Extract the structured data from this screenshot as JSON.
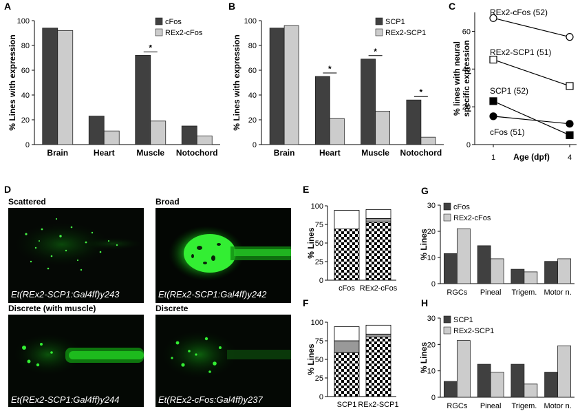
{
  "colors": {
    "dark": "#404040",
    "light": "#cccccc",
    "green": "#22dd22",
    "stroke": "#000000"
  },
  "panelA": {
    "letter": "A",
    "chart_data": {
      "type": "bar",
      "ylabel": "% Lines with expression",
      "ylim": [
        0,
        100
      ],
      "yticks": [
        0,
        20,
        40,
        60,
        80,
        100
      ],
      "categories": [
        "Brain",
        "Heart",
        "Muscle",
        "Notochord"
      ],
      "series": [
        {
          "name": "cFos",
          "values": [
            94,
            23,
            72,
            15
          ]
        },
        {
          "name": "REx2-cFos",
          "values": [
            92,
            11,
            19,
            7
          ]
        }
      ],
      "significance": [
        {
          "category_index": 2,
          "text": "*"
        }
      ],
      "legend": "top-right"
    }
  },
  "panelB": {
    "letter": "B",
    "chart_data": {
      "type": "bar",
      "ylabel": "% Lines with expression",
      "ylim": [
        0,
        100
      ],
      "yticks": [
        0,
        20,
        40,
        60,
        80,
        100
      ],
      "categories": [
        "Brain",
        "Heart",
        "Muscle",
        "Notochord"
      ],
      "series": [
        {
          "name": "SCP1",
          "values": [
            94,
            55,
            69,
            36
          ]
        },
        {
          "name": "REx2-SCP1",
          "values": [
            96,
            21,
            27,
            6
          ]
        }
      ],
      "significance": [
        {
          "category_index": 1,
          "text": "*"
        },
        {
          "category_index": 2,
          "text": "*"
        },
        {
          "category_index": 3,
          "text": "*"
        }
      ],
      "legend": "top-right"
    }
  },
  "panelC": {
    "letter": "C",
    "chart_data": {
      "type": "line",
      "ylabel": "% lines with neural specific expression",
      "ylabel_lines": [
        "% lines with neural",
        "specific expression"
      ],
      "xlabel": "Age (dpf)",
      "x": [
        1,
        4
      ],
      "ylim": [
        0,
        70
      ],
      "yticks": [
        0,
        20,
        40,
        60
      ],
      "series": [
        {
          "name": "REx2-cFos (52)",
          "values": [
            67,
            57
          ],
          "marker": "open-circle"
        },
        {
          "name": "REx2-SCP1 (51)",
          "values": [
            45,
            31
          ],
          "marker": "open-square"
        },
        {
          "name": "SCP1 (52)",
          "values": [
            23,
            5
          ],
          "marker": "filled-square"
        },
        {
          "name": "cFos (51)",
          "values": [
            15,
            11
          ],
          "marker": "filled-circle"
        }
      ]
    }
  },
  "panelD": {
    "letter": "D",
    "images": [
      {
        "title": "Scattered",
        "caption": "Et(REx2-SCP1:Gal4ff)y243"
      },
      {
        "title": "Broad",
        "caption": "Et(REx2-SCP1:Gal4ff)y242"
      },
      {
        "title": "Discrete (with muscle)",
        "caption": "Et(REx2-SCP1:Gal4ff)y244"
      },
      {
        "title": "Discrete",
        "caption": "Et(REx2-cFos:Gal4ff)y237"
      }
    ]
  },
  "panelE": {
    "letter": "E",
    "chart_data": {
      "type": "bar",
      "stacked": true,
      "ylabel": "% Lines",
      "ylim": [
        0,
        100
      ],
      "yticks": [
        0,
        25,
        50,
        75,
        100
      ],
      "categories": [
        "cFos",
        "REx2-cFos"
      ],
      "series": [
        {
          "name": "",
          "pattern": "checker",
          "values": [
            69,
            78
          ]
        },
        {
          "name": "",
          "pattern": "gray",
          "values": [
            0,
            5
          ]
        },
        {
          "name": "",
          "pattern": "white",
          "values": [
            25,
            12
          ]
        }
      ]
    }
  },
  "panelF": {
    "letter": "F",
    "chart_data": {
      "type": "bar",
      "stacked": true,
      "ylabel": "% Lines",
      "ylim": [
        0,
        100
      ],
      "yticks": [
        0,
        25,
        50,
        75,
        100
      ],
      "categories": [
        "SCP1",
        "REx2-SCP1"
      ],
      "series": [
        {
          "name": "",
          "pattern": "checker",
          "values": [
            59,
            80
          ]
        },
        {
          "name": "",
          "pattern": "gray",
          "values": [
            16,
            4
          ]
        },
        {
          "name": "",
          "pattern": "white",
          "values": [
            19,
            12
          ]
        }
      ]
    }
  },
  "panelG": {
    "letter": "G",
    "chart_data": {
      "type": "bar",
      "ylabel": "% Lines",
      "ylim": [
        0,
        30
      ],
      "yticks": [
        0,
        10,
        20,
        30
      ],
      "categories": [
        "RGCs",
        "Pineal",
        "Trigem.",
        "Motor n."
      ],
      "series": [
        {
          "name": "cFos",
          "values": [
            11.5,
            14.5,
            5.5,
            8.5
          ]
        },
        {
          "name": "REx2-cFos",
          "values": [
            21,
            9.5,
            4.5,
            9.5
          ]
        }
      ],
      "legend": "top-left"
    }
  },
  "panelH": {
    "letter": "H",
    "chart_data": {
      "type": "bar",
      "ylabel": "% Lines",
      "ylim": [
        0,
        30
      ],
      "yticks": [
        0,
        10,
        20,
        30
      ],
      "categories": [
        "RGCs",
        "Pineal",
        "Trigem.",
        "Motor n."
      ],
      "series": [
        {
          "name": "SCP1",
          "values": [
            6,
            12.5,
            12.5,
            9.5
          ]
        },
        {
          "name": "REx2-SCP1",
          "values": [
            21.5,
            9.5,
            5,
            19.5
          ]
        }
      ],
      "legend": "top-left"
    }
  }
}
